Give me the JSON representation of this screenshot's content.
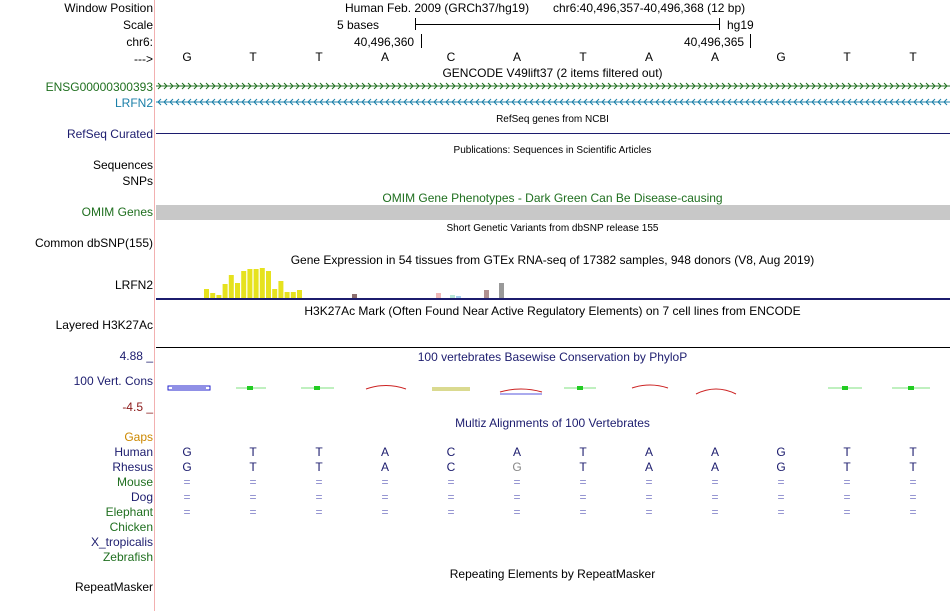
{
  "labels": {
    "window_position": "Window Position",
    "scale": "Scale",
    "chr": "chr6:",
    "arrow": "--->",
    "ensg": "ENSG00000300393",
    "lrfn2": "LRFN2",
    "refseq": "RefSeq Curated",
    "sequences": "Sequences",
    "snps": "SNPs",
    "omim": "OMIM Genes",
    "dbsnp": "Common dbSNP(155)",
    "gtex_gene": "LRFN2",
    "h3k27ac": "Layered H3K27Ac",
    "cons_max": "4.88 _",
    "cons_label": "100 Vert. Cons",
    "cons_min": "-4.5 _",
    "gaps": "Gaps",
    "repeatmasker": "RepeatMasker"
  },
  "colors": {
    "ensg": "#1f6f1f",
    "lrfn2": "#1a7fa8",
    "navy": "#1c1c6e",
    "omim": "#1f6f1f",
    "gaps": "#cc8800",
    "cons_max": "#1c1c6e",
    "cons_min": "#8b1a1a",
    "gtex_bar": "#e6e21e",
    "omim_bar": "#c8c8c8"
  },
  "header": {
    "assembly": "Human Feb. 2009 (GRCh37/hg19)",
    "position": "chr6:40,496,357-40,496,368 (12 bp)",
    "scale_text": "5 bases",
    "scale_db": "hg19",
    "coord_left": "40,496,360",
    "coord_right": "40,496,365"
  },
  "bases": [
    "G",
    "T",
    "T",
    "A",
    "C",
    "A",
    "T",
    "A",
    "A",
    "G",
    "T",
    "T"
  ],
  "tracks": {
    "gencode": "GENCODE V49lift37 (2 items filtered out)",
    "refseq": "RefSeq genes from NCBI",
    "publications": "Publications: Sequences in Scientific Articles",
    "omim": "OMIM Gene Phenotypes - Dark Green Can Be Disease-causing",
    "dbsnp": "Short Genetic Variants from dbSNP release 155",
    "gtex": "Gene Expression in 54 tissues from GTEx RNA-seq of 17382 samples, 948 donors (V8, Aug 2019)",
    "h3k27ac": "H3K27Ac Mark (Often Found Near Active Regulatory Elements) on 7 cell lines from ENCODE",
    "phylop": "100 vertebrates Basewise Conservation by PhyloP",
    "multiz": "Multiz Alignments of 100 Vertebrates",
    "repeatmasker": "Repeating Elements by RepeatMasker"
  },
  "gtex_values": [
    0.3,
    0.15,
    0.1,
    0.45,
    0.75,
    0.5,
    0.9,
    0.95,
    0.95,
    1.0,
    0.9,
    0.3,
    0.55,
    0.2,
    0.2,
    0.25
  ],
  "species": [
    {
      "name": "Human",
      "color": "#1c1c6e",
      "row": [
        "G",
        "T",
        "T",
        "A",
        "C",
        "A",
        "T",
        "A",
        "A",
        "G",
        "T",
        "T"
      ]
    },
    {
      "name": "Rhesus",
      "color": "#1c1c6e",
      "row": [
        "G",
        "T",
        "T",
        "A",
        "C",
        "G",
        "T",
        "A",
        "A",
        "G",
        "T",
        "T"
      ]
    },
    {
      "name": "Mouse",
      "color": "#1f6f1f",
      "row": [
        "=",
        "=",
        "=",
        "=",
        "=",
        "=",
        "=",
        "=",
        "=",
        "=",
        "=",
        "="
      ]
    },
    {
      "name": "Dog",
      "color": "#1c1c6e",
      "row": [
        "=",
        "=",
        "=",
        "=",
        "=",
        "=",
        "=",
        "=",
        "=",
        "=",
        "=",
        "="
      ]
    },
    {
      "name": "Elephant",
      "color": "#1f6f1f",
      "row": [
        "=",
        "=",
        "=",
        "=",
        "=",
        "=",
        "=",
        "=",
        "=",
        "=",
        "=",
        "="
      ]
    },
    {
      "name": "Chicken",
      "color": "#1f6f1f",
      "row": []
    },
    {
      "name": "X_tropicalis",
      "color": "#1c1c6e",
      "row": []
    },
    {
      "name": "Zebrafish",
      "color": "#1f6f1f",
      "row": []
    }
  ]
}
